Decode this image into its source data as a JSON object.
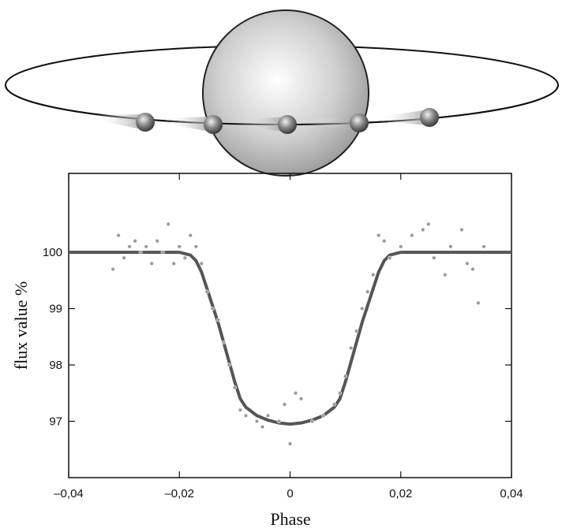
{
  "chart_data": {
    "type": "line",
    "xlabel": "Phase",
    "ylabel": "flux value %",
    "xlim": [
      -0.04,
      0.04
    ],
    "ylim": [
      96,
      101.4
    ],
    "xticks": [
      {
        "value": -0.04,
        "label": "–0,04"
      },
      {
        "value": -0.02,
        "label": "–0,02"
      },
      0,
      {
        "value": 0.02,
        "label": "0,02"
      },
      {
        "value": 0.04,
        "label": "0,04"
      }
    ],
    "yticks": [
      97,
      98,
      99,
      100
    ],
    "series": [
      {
        "type": "line",
        "color": "#555555",
        "x": [
          -0.04,
          -0.02,
          -0.018,
          -0.017,
          -0.016,
          -0.015,
          -0.014,
          -0.013,
          -0.012,
          -0.011,
          -0.01,
          -0.009,
          -0.008,
          -0.006,
          -0.004,
          -0.002,
          0,
          0.002,
          0.004,
          0.006,
          0.008,
          0.009,
          0.01,
          0.011,
          0.012,
          0.013,
          0.014,
          0.015,
          0.016,
          0.017,
          0.018,
          0.02,
          0.04
        ],
        "values": [
          100,
          100,
          99.95,
          99.85,
          99.65,
          99.35,
          99.05,
          98.75,
          98.4,
          98.05,
          97.7,
          97.4,
          97.25,
          97.1,
          97.02,
          96.97,
          96.95,
          96.97,
          97.02,
          97.1,
          97.25,
          97.4,
          97.7,
          98.05,
          98.4,
          98.75,
          99.05,
          99.35,
          99.65,
          99.85,
          99.95,
          100,
          100
        ]
      },
      {
        "type": "scatter",
        "color": "#9a9a9a",
        "x": [
          -0.032,
          -0.031,
          -0.03,
          -0.029,
          -0.028,
          -0.027,
          -0.026,
          -0.025,
          -0.024,
          -0.023,
          -0.022,
          -0.021,
          -0.02,
          -0.019,
          -0.018,
          -0.017,
          -0.016,
          -0.015,
          -0.014,
          -0.013,
          -0.012,
          -0.011,
          -0.01,
          -0.009,
          -0.008,
          -0.006,
          -0.005,
          -0.004,
          -0.002,
          -0.001,
          0,
          0.001,
          0.002,
          0.004,
          0.006,
          0.008,
          0.009,
          0.01,
          0.011,
          0.012,
          0.013,
          0.014,
          0.015,
          0.016,
          0.017,
          0.018,
          0.02,
          0.022,
          0.024,
          0.025,
          0.026,
          0.028,
          0.029,
          0.031,
          0.032,
          0.033,
          0.034,
          0.035
        ],
        "values": [
          99.7,
          100.3,
          99.9,
          100.1,
          100.2,
          100.0,
          100.1,
          99.8,
          100.2,
          100.0,
          100.5,
          99.8,
          100.1,
          99.9,
          100.3,
          100.1,
          99.8,
          99.3,
          99.0,
          98.8,
          98.4,
          98.0,
          97.6,
          97.2,
          97.1,
          97.0,
          96.9,
          97.1,
          97.0,
          97.3,
          96.6,
          97.5,
          97.4,
          97.0,
          97.1,
          97.3,
          97.5,
          97.8,
          98.3,
          98.6,
          99.0,
          99.3,
          99.6,
          100.3,
          100.2,
          99.9,
          100.1,
          100.3,
          100.4,
          100.5,
          99.9,
          99.6,
          100.1,
          100.4,
          99.8,
          99.7,
          99.1,
          100.1
        ]
      }
    ]
  }
}
